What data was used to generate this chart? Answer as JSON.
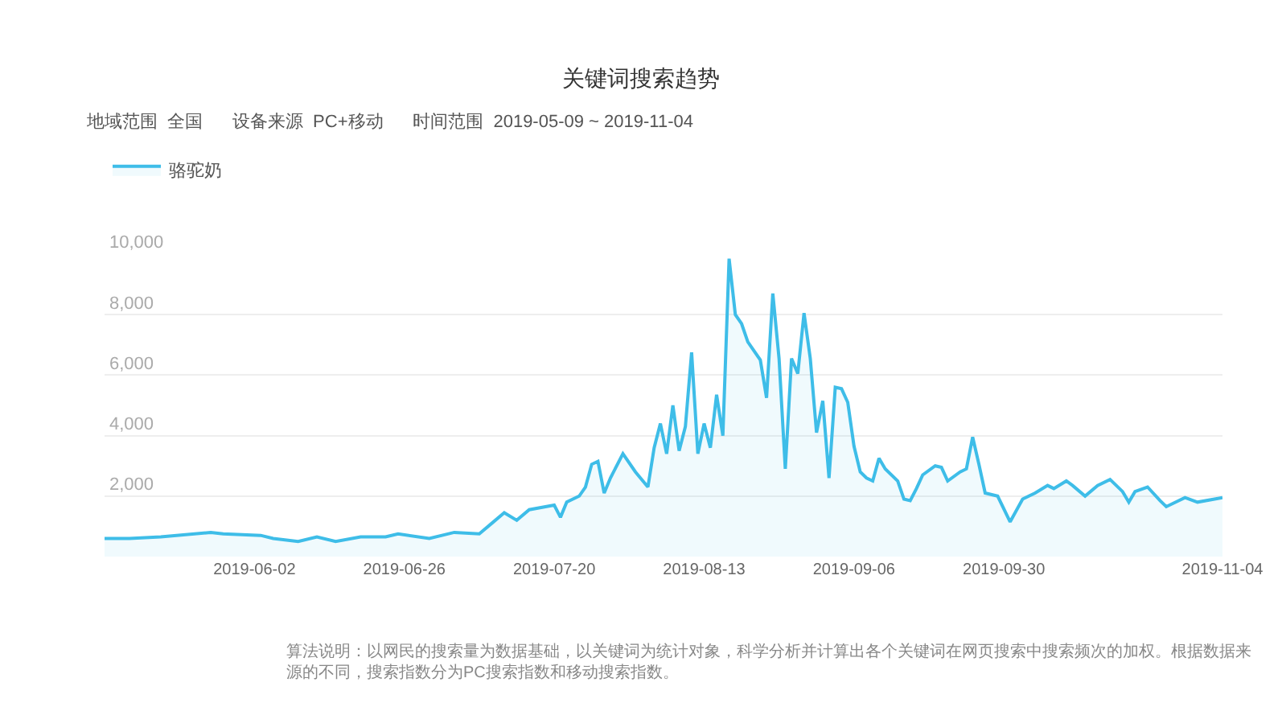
{
  "chart_data": {
    "type": "area",
    "title": "关键词搜索趋势",
    "subtitle": "地域范围  全国      设备来源  PC+移动      时间范围  2019-05-09 ~ 2019-11-04",
    "x": [
      "2019-05-09",
      "2019-05-13",
      "2019-05-18",
      "2019-05-26",
      "2019-05-28",
      "2019-06-03",
      "2019-06-05",
      "2019-06-09",
      "2019-06-12",
      "2019-06-15",
      "2019-06-19",
      "2019-06-23",
      "2019-06-25",
      "2019-06-30",
      "2019-07-04",
      "2019-07-08",
      "2019-07-10",
      "2019-07-12",
      "2019-07-14",
      "2019-07-16",
      "2019-07-20",
      "2019-07-21",
      "2019-07-22",
      "2019-07-24",
      "2019-07-25",
      "2019-07-26",
      "2019-07-27",
      "2019-07-28",
      "2019-07-29",
      "2019-07-31",
      "2019-08-02",
      "2019-08-04",
      "2019-08-05",
      "2019-08-06",
      "2019-08-07",
      "2019-08-08",
      "2019-08-09",
      "2019-08-10",
      "2019-08-11",
      "2019-08-12",
      "2019-08-13",
      "2019-08-14",
      "2019-08-15",
      "2019-08-16",
      "2019-08-17",
      "2019-08-18",
      "2019-08-19",
      "2019-08-20",
      "2019-08-22",
      "2019-08-23",
      "2019-08-24",
      "2019-08-25",
      "2019-08-26",
      "2019-08-27",
      "2019-08-28",
      "2019-08-29",
      "2019-08-30",
      "2019-08-31",
      "2019-09-01",
      "2019-09-02",
      "2019-09-03",
      "2019-09-04",
      "2019-09-05",
      "2019-09-06",
      "2019-09-07",
      "2019-09-08",
      "2019-09-09",
      "2019-09-10",
      "2019-09-11",
      "2019-09-13",
      "2019-09-14",
      "2019-09-15",
      "2019-09-16",
      "2019-09-17",
      "2019-09-19",
      "2019-09-20",
      "2019-09-21",
      "2019-09-23",
      "2019-09-24",
      "2019-09-25",
      "2019-09-26",
      "2019-09-27",
      "2019-09-29",
      "2019-10-01",
      "2019-10-03",
      "2019-10-05",
      "2019-10-07",
      "2019-10-08",
      "2019-10-10",
      "2019-10-11",
      "2019-10-13",
      "2019-10-15",
      "2019-10-17",
      "2019-10-19",
      "2019-10-20",
      "2019-10-21",
      "2019-10-23",
      "2019-10-25",
      "2019-10-26",
      "2019-10-29",
      "2019-10-31",
      "2019-11-04"
    ],
    "series": [
      {
        "name": "骆驼奶",
        "color": "#3ebde8",
        "values": [
          600,
          600,
          650,
          800,
          750,
          700,
          600,
          500,
          650,
          500,
          650,
          650,
          750,
          600,
          800,
          750,
          1100,
          1450,
          1200,
          1550,
          1700,
          1300,
          1800,
          2000,
          2300,
          3050,
          3150,
          2100,
          2600,
          3400,
          2800,
          2300,
          3600,
          4400,
          3400,
          5000,
          3500,
          4300,
          6750,
          3400,
          4400,
          3600,
          5350,
          4000,
          9850,
          8000,
          7700,
          7100,
          6500,
          5250,
          8700,
          6550,
          2900,
          6550,
          6050,
          8050,
          6550,
          4100,
          5150,
          2600,
          5600,
          5550,
          5100,
          3650,
          2800,
          2600,
          2500,
          3250,
          2900,
          2500,
          1900,
          1850,
          2250,
          2700,
          3000,
          2950,
          2500,
          2800,
          2900,
          3950,
          3050,
          2100,
          2000,
          1150,
          1900,
          2100,
          2350,
          2250,
          2500,
          2350,
          2000,
          2350,
          2550,
          2150,
          1800,
          2150,
          2300,
          1850,
          1650,
          1950,
          1800,
          1950
        ]
      }
    ],
    "xlim": [
      "2019-05-09",
      "2019-11-04"
    ],
    "ylim": [
      0,
      10000
    ],
    "xticks": [
      {
        "value": "2019-06-02",
        "label": "2019-06-02"
      },
      {
        "value": "2019-06-26",
        "label": "2019-06-26"
      },
      {
        "value": "2019-07-20",
        "label": "2019-07-20"
      },
      {
        "value": "2019-08-13",
        "label": "2019-08-13"
      },
      {
        "value": "2019-09-06",
        "label": "2019-09-06"
      },
      {
        "value": "2019-09-30",
        "label": "2019-09-30"
      },
      {
        "value": "2019-11-04",
        "label": "2019-11-04"
      }
    ],
    "yticks": [
      {
        "value": 2000,
        "label": "2,000"
      },
      {
        "value": 4000,
        "label": "4,000"
      },
      {
        "value": 6000,
        "label": "6,000"
      },
      {
        "value": 8000,
        "label": "8,000"
      },
      {
        "value": 10000,
        "label": "10,000"
      }
    ],
    "grid": "y",
    "legend": "top left",
    "annotations": [
      "算法说明：以网民的搜索量为数据基础，以关键词为统计对象，科学分析并计算出各个关键词在网页搜索中搜索频次的加权。根据数据来源的不同，搜索指数分为PC搜索指数和移动搜索指数。"
    ]
  }
}
